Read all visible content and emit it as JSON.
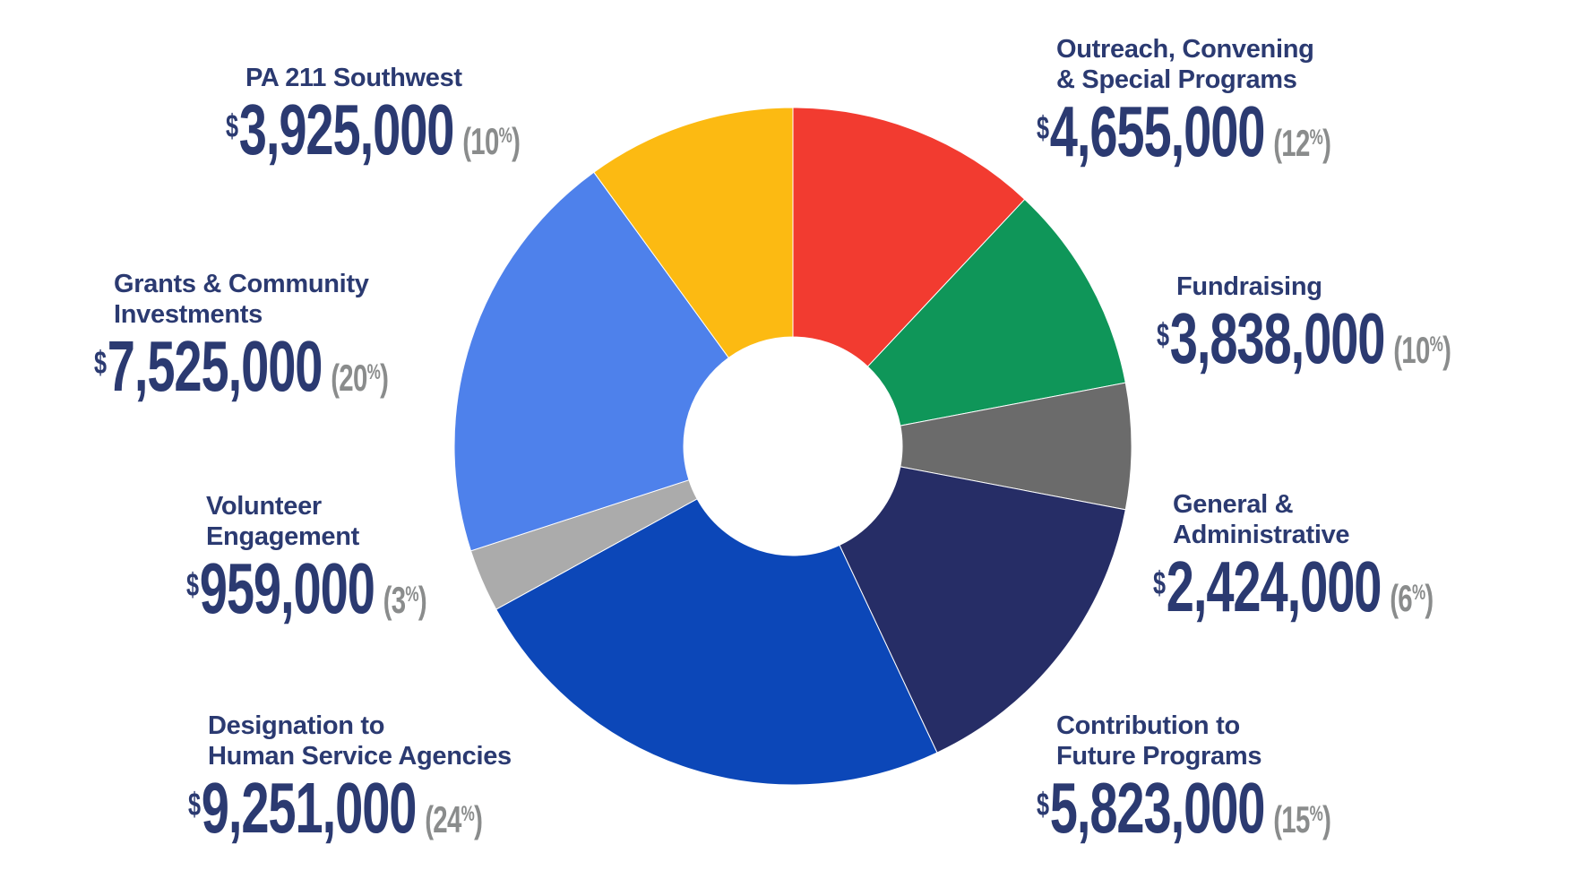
{
  "page": {
    "background": "#ffffff"
  },
  "chart_data": {
    "type": "pie",
    "subtype": "donut",
    "title": "",
    "legend": "none",
    "start_angle_deg": 0,
    "direction": "clockwise",
    "inner_radius_ratio": 0.32,
    "slices": [
      {
        "label": "Outreach, Convening & Special Programs",
        "label_lines": [
          "Outreach, Convening",
          "& Special Programs"
        ],
        "amount": "4,655,000",
        "value": 4655000,
        "percent": "12",
        "color": "#f23b30"
      },
      {
        "label": "Fundraising",
        "label_lines": [
          "Fundraising"
        ],
        "amount": "3,838,000",
        "value": 3838000,
        "percent": "10",
        "color": "#0f9659"
      },
      {
        "label": "General & Administrative",
        "label_lines": [
          "General &",
          "Administrative"
        ],
        "amount": "2,424,000",
        "value": 2424000,
        "percent": "6",
        "color": "#6b6b6b"
      },
      {
        "label": "Contribution to Future Programs",
        "label_lines": [
          "Contribution to",
          "Future Programs"
        ],
        "amount": "5,823,000",
        "value": 5823000,
        "percent": "15",
        "color": "#262d66"
      },
      {
        "label": "Designation to Human Service Agencies",
        "label_lines": [
          "Designation to",
          "Human Service Agencies"
        ],
        "amount": "9,251,000",
        "value": 9251000,
        "percent": "24",
        "color": "#0c47b8"
      },
      {
        "label": "Volunteer Engagement",
        "label_lines": [
          "Volunteer",
          "Engagement"
        ],
        "amount": "959,000",
        "value": 959000,
        "percent": "3",
        "color": "#ababab"
      },
      {
        "label": "Grants & Community Investments",
        "label_lines": [
          "Grants & Community",
          "Investments"
        ],
        "amount": "7,525,000",
        "value": 7525000,
        "percent": "20",
        "color": "#4e81eb"
      },
      {
        "label": "PA 211 Southwest",
        "label_lines": [
          "PA 211 Southwest"
        ],
        "amount": "3,925,000",
        "value": 3925000,
        "percent": "10",
        "color": "#fcba12"
      }
    ]
  },
  "symbols": {
    "currency": "$",
    "percent_open": "(",
    "percent_sign": "%",
    "percent_close": ")"
  },
  "colors": {
    "label_text": "#2b3a71",
    "percent_text": "#8a8c8c",
    "background": "#ffffff"
  }
}
